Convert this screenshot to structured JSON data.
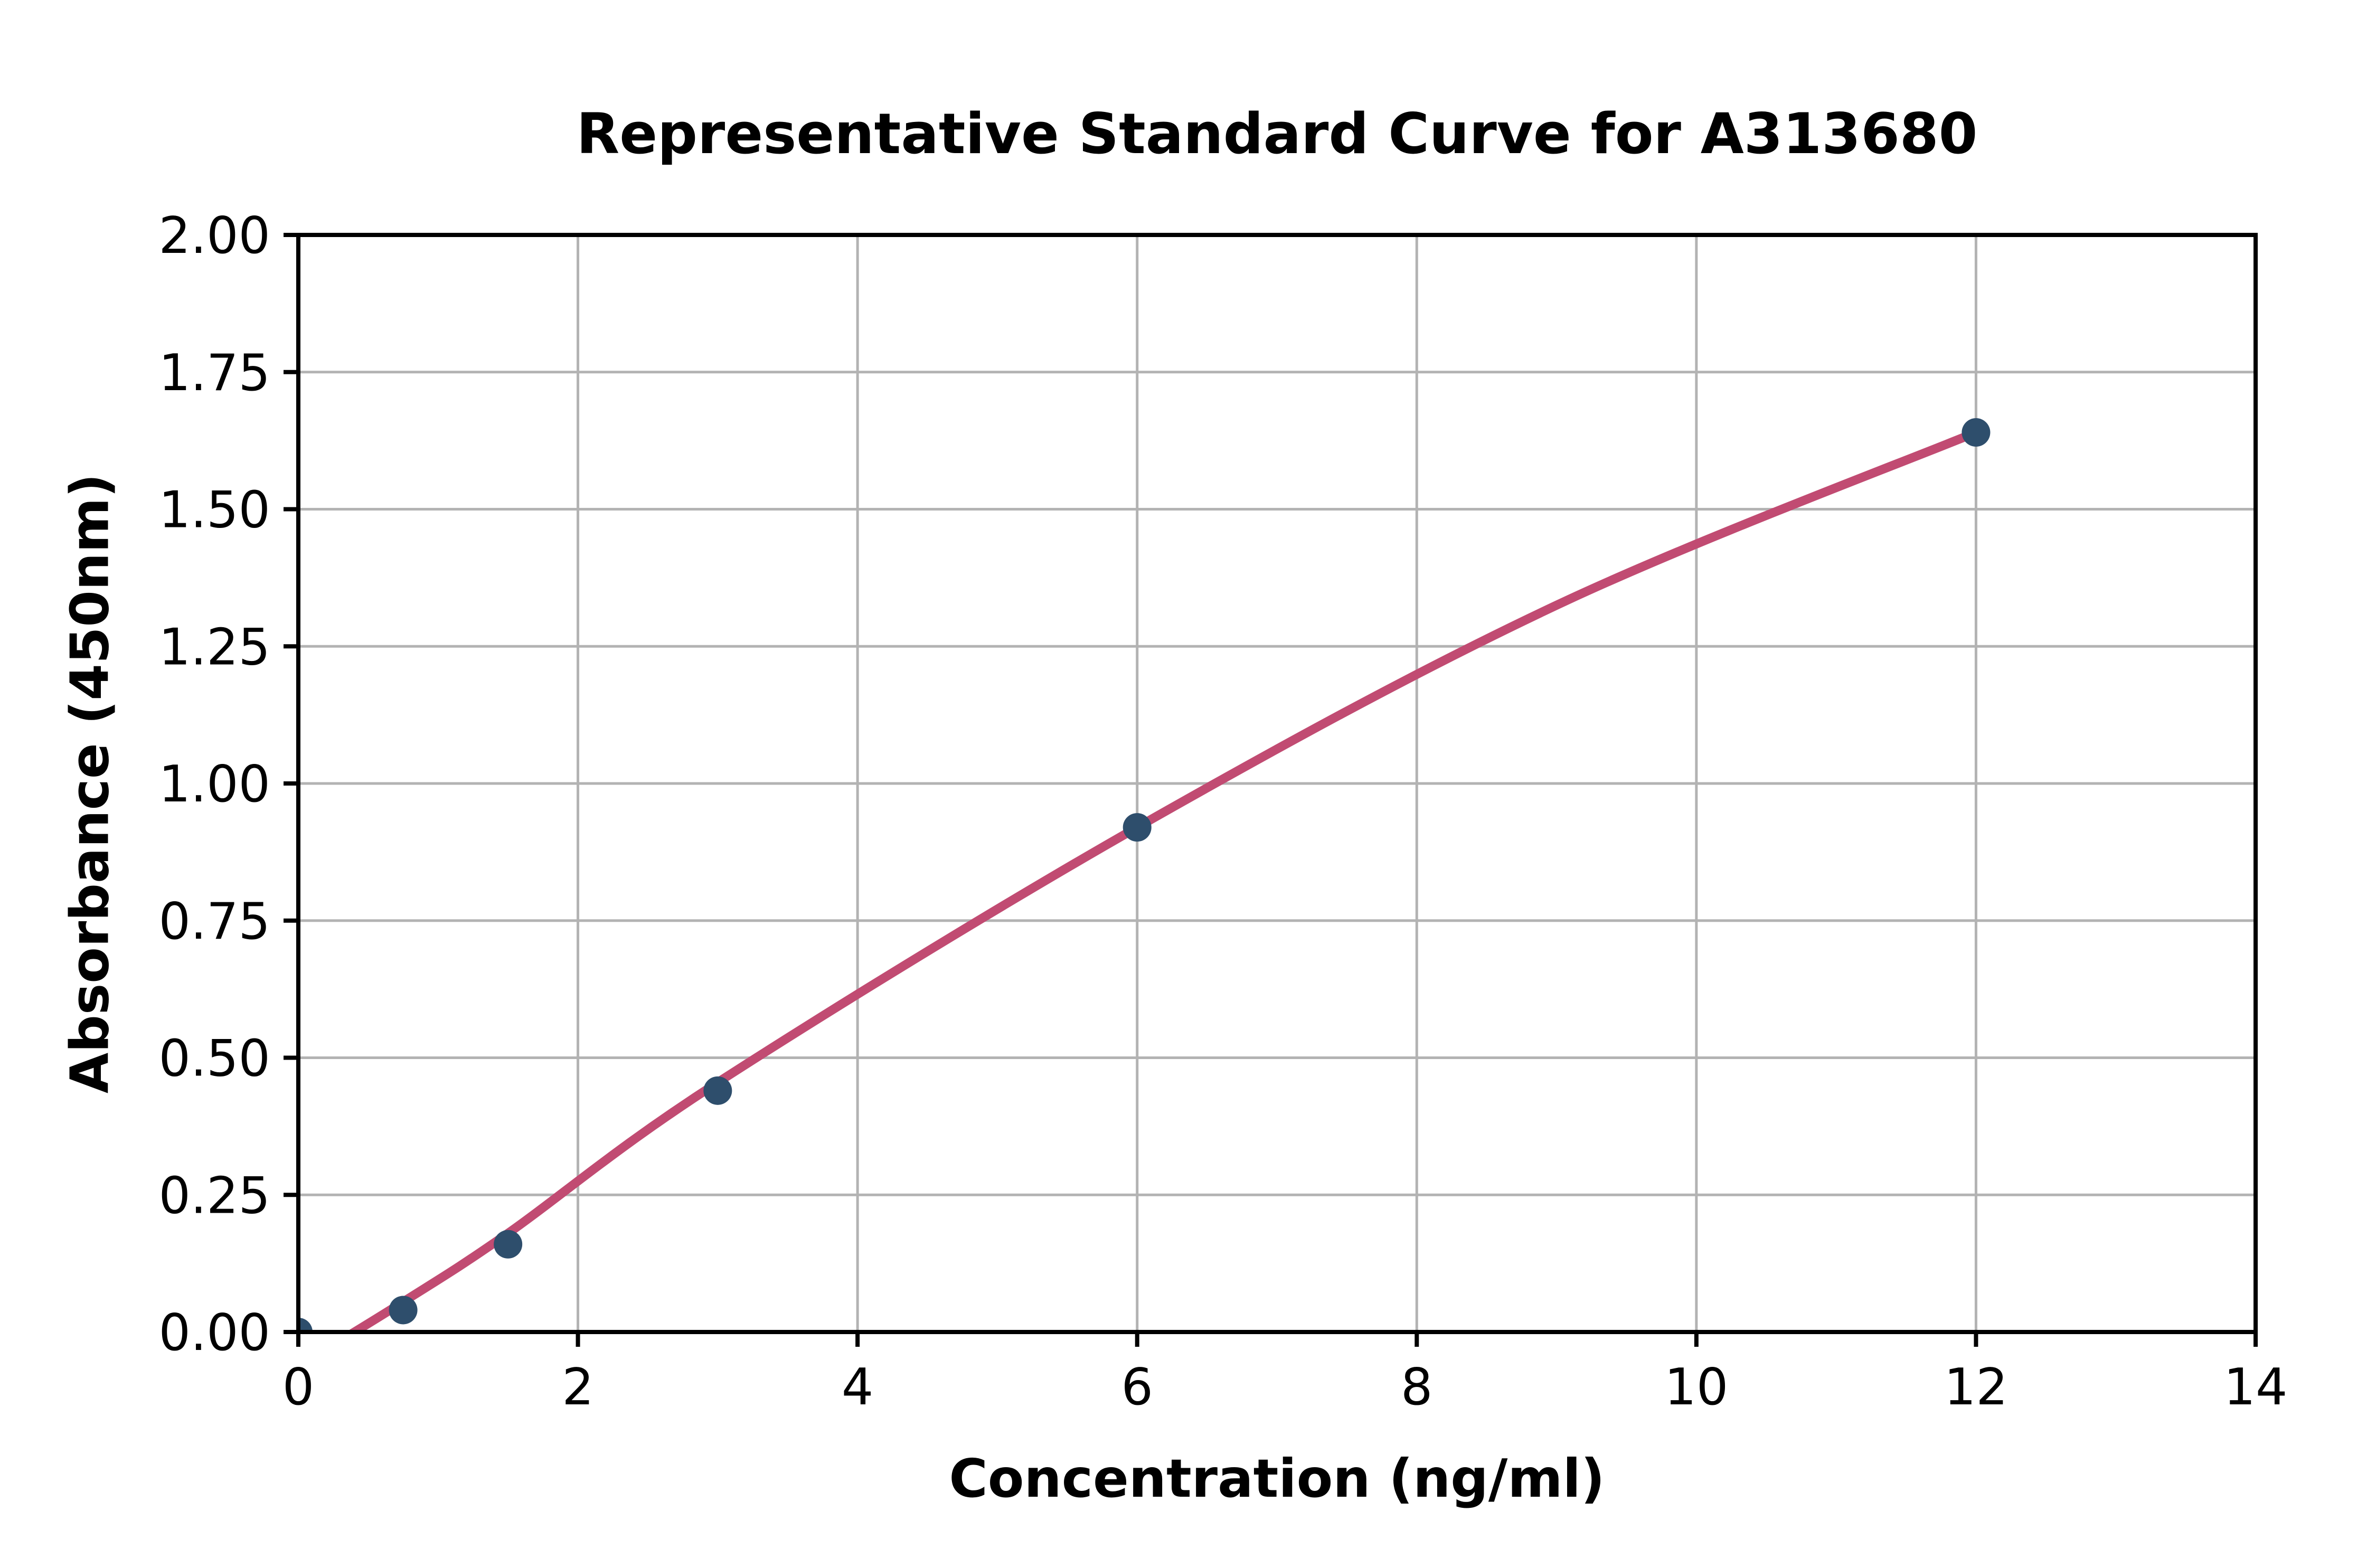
{
  "chart_data": {
    "type": "scatter",
    "title": "Representative Standard Curve for A313680",
    "xlabel": "Concentration (ng/ml)",
    "ylabel": "Absorbance (450nm)",
    "xlim": [
      0,
      14
    ],
    "ylim": [
      0,
      2
    ],
    "xticks": [
      0,
      2,
      4,
      6,
      8,
      10,
      12,
      14
    ],
    "xtick_labels": [
      "0",
      "2",
      "4",
      "6",
      "8",
      "10",
      "12",
      "14"
    ],
    "yticks": [
      0,
      0.25,
      0.5,
      0.75,
      1.0,
      1.25,
      1.5,
      1.75,
      2.0
    ],
    "ytick_labels": [
      "0.00",
      "0.25",
      "0.50",
      "0.75",
      "1.00",
      "1.25",
      "1.50",
      "1.75",
      "2.00"
    ],
    "grid": true,
    "legend": "none",
    "points": {
      "x": [
        0,
        0.75,
        1.5,
        3,
        6,
        12
      ],
      "y": [
        0.0,
        0.04,
        0.16,
        0.44,
        0.92,
        1.64
      ]
    },
    "fit_curve": [
      [
        0.08,
        -0.05
      ],
      [
        0.75,
        0.055
      ],
      [
        1.5,
        0.18
      ],
      [
        3,
        0.455
      ],
      [
        6,
        0.92
      ],
      [
        9,
        1.325
      ],
      [
        12,
        1.64
      ]
    ],
    "colors": {
      "curve": "#c14b72",
      "points": "#2e4e6c",
      "grid": "#b3b3b3",
      "axis": "#000000",
      "background": "#ffffff"
    }
  }
}
